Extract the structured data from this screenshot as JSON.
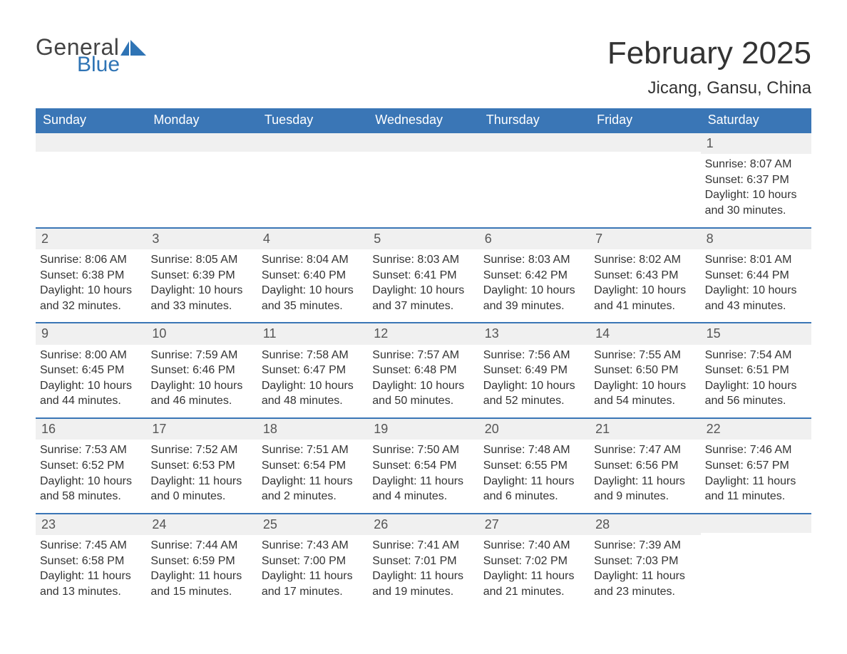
{
  "logo": {
    "text1": "General",
    "text2": "Blue",
    "icon_color": "#2f74b5"
  },
  "title": "February 2025",
  "location": "Jicang, Gansu, China",
  "colors": {
    "header_bg": "#3a76b6",
    "header_text": "#ffffff",
    "daynum_bg": "#f0f0f0",
    "border": "#3a76b6",
    "text": "#333333",
    "logo_blue": "#2f74b5"
  },
  "fonts": {
    "title_size": 44,
    "location_size": 24,
    "dow_size": 18,
    "body_size": 16
  },
  "days_of_week": [
    "Sunday",
    "Monday",
    "Tuesday",
    "Wednesday",
    "Thursday",
    "Friday",
    "Saturday"
  ],
  "labels": {
    "sunrise": "Sunrise: ",
    "sunset": "Sunset: ",
    "daylight": "Daylight: "
  },
  "weeks": [
    [
      {
        "empty": true
      },
      {
        "empty": true
      },
      {
        "empty": true
      },
      {
        "empty": true
      },
      {
        "empty": true
      },
      {
        "empty": true
      },
      {
        "n": "1",
        "sunrise": "8:07 AM",
        "sunset": "6:37 PM",
        "daylight": "10 hours and 30 minutes."
      }
    ],
    [
      {
        "n": "2",
        "sunrise": "8:06 AM",
        "sunset": "6:38 PM",
        "daylight": "10 hours and 32 minutes."
      },
      {
        "n": "3",
        "sunrise": "8:05 AM",
        "sunset": "6:39 PM",
        "daylight": "10 hours and 33 minutes."
      },
      {
        "n": "4",
        "sunrise": "8:04 AM",
        "sunset": "6:40 PM",
        "daylight": "10 hours and 35 minutes."
      },
      {
        "n": "5",
        "sunrise": "8:03 AM",
        "sunset": "6:41 PM",
        "daylight": "10 hours and 37 minutes."
      },
      {
        "n": "6",
        "sunrise": "8:03 AM",
        "sunset": "6:42 PM",
        "daylight": "10 hours and 39 minutes."
      },
      {
        "n": "7",
        "sunrise": "8:02 AM",
        "sunset": "6:43 PM",
        "daylight": "10 hours and 41 minutes."
      },
      {
        "n": "8",
        "sunrise": "8:01 AM",
        "sunset": "6:44 PM",
        "daylight": "10 hours and 43 minutes."
      }
    ],
    [
      {
        "n": "9",
        "sunrise": "8:00 AM",
        "sunset": "6:45 PM",
        "daylight": "10 hours and 44 minutes."
      },
      {
        "n": "10",
        "sunrise": "7:59 AM",
        "sunset": "6:46 PM",
        "daylight": "10 hours and 46 minutes."
      },
      {
        "n": "11",
        "sunrise": "7:58 AM",
        "sunset": "6:47 PM",
        "daylight": "10 hours and 48 minutes."
      },
      {
        "n": "12",
        "sunrise": "7:57 AM",
        "sunset": "6:48 PM",
        "daylight": "10 hours and 50 minutes."
      },
      {
        "n": "13",
        "sunrise": "7:56 AM",
        "sunset": "6:49 PM",
        "daylight": "10 hours and 52 minutes."
      },
      {
        "n": "14",
        "sunrise": "7:55 AM",
        "sunset": "6:50 PM",
        "daylight": "10 hours and 54 minutes."
      },
      {
        "n": "15",
        "sunrise": "7:54 AM",
        "sunset": "6:51 PM",
        "daylight": "10 hours and 56 minutes."
      }
    ],
    [
      {
        "n": "16",
        "sunrise": "7:53 AM",
        "sunset": "6:52 PM",
        "daylight": "10 hours and 58 minutes."
      },
      {
        "n": "17",
        "sunrise": "7:52 AM",
        "sunset": "6:53 PM",
        "daylight": "11 hours and 0 minutes."
      },
      {
        "n": "18",
        "sunrise": "7:51 AM",
        "sunset": "6:54 PM",
        "daylight": "11 hours and 2 minutes."
      },
      {
        "n": "19",
        "sunrise": "7:50 AM",
        "sunset": "6:54 PM",
        "daylight": "11 hours and 4 minutes."
      },
      {
        "n": "20",
        "sunrise": "7:48 AM",
        "sunset": "6:55 PM",
        "daylight": "11 hours and 6 minutes."
      },
      {
        "n": "21",
        "sunrise": "7:47 AM",
        "sunset": "6:56 PM",
        "daylight": "11 hours and 9 minutes."
      },
      {
        "n": "22",
        "sunrise": "7:46 AM",
        "sunset": "6:57 PM",
        "daylight": "11 hours and 11 minutes."
      }
    ],
    [
      {
        "n": "23",
        "sunrise": "7:45 AM",
        "sunset": "6:58 PM",
        "daylight": "11 hours and 13 minutes."
      },
      {
        "n": "24",
        "sunrise": "7:44 AM",
        "sunset": "6:59 PM",
        "daylight": "11 hours and 15 minutes."
      },
      {
        "n": "25",
        "sunrise": "7:43 AM",
        "sunset": "7:00 PM",
        "daylight": "11 hours and 17 minutes."
      },
      {
        "n": "26",
        "sunrise": "7:41 AM",
        "sunset": "7:01 PM",
        "daylight": "11 hours and 19 minutes."
      },
      {
        "n": "27",
        "sunrise": "7:40 AM",
        "sunset": "7:02 PM",
        "daylight": "11 hours and 21 minutes."
      },
      {
        "n": "28",
        "sunrise": "7:39 AM",
        "sunset": "7:03 PM",
        "daylight": "11 hours and 23 minutes."
      },
      {
        "empty": true
      }
    ]
  ]
}
